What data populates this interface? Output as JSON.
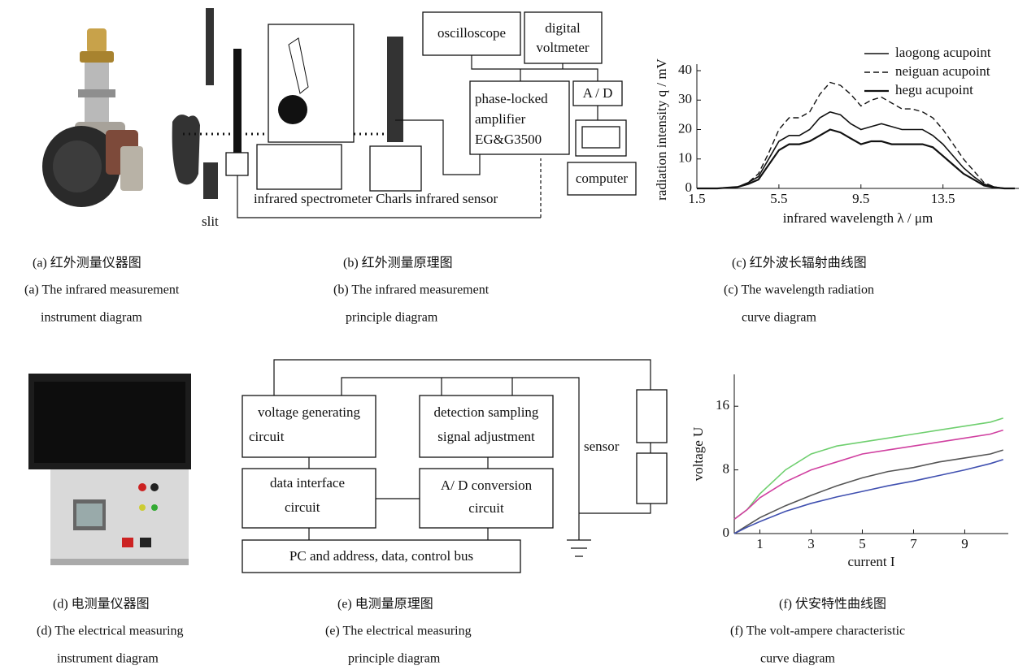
{
  "chart_data": [
    {
      "type": "line",
      "y_label": "radiation intensity q / mV",
      "x_label": "infrared wavelength λ / μm",
      "x": [
        1.5,
        2.5,
        3.5,
        4.0,
        4.5,
        5.0,
        5.5,
        6.0,
        6.5,
        7.0,
        7.5,
        8.0,
        8.5,
        9.0,
        9.5,
        10.0,
        10.5,
        11.0,
        11.5,
        12.0,
        12.5,
        13.0,
        13.5,
        14.0,
        14.5,
        15.0,
        15.5,
        16.0,
        16.5,
        17.0
      ],
      "series": [
        {
          "name": "laogong acupoint",
          "color": "#111111",
          "dash": false,
          "width": 1.6,
          "values": [
            0,
            0,
            0.5,
            2,
            4,
            10,
            16,
            18,
            18,
            20,
            24,
            26,
            25,
            22,
            20,
            21,
            22,
            21,
            20,
            20,
            20,
            18,
            15,
            11,
            7,
            4,
            1.5,
            0.5,
            0,
            0
          ]
        },
        {
          "name": "neiguan acupoint",
          "color": "#111111",
          "dash": true,
          "width": 1.4,
          "values": [
            0,
            0,
            0.5,
            2,
            5,
            12,
            20,
            24,
            24,
            26,
            32,
            36,
            35,
            32,
            28,
            30,
            31,
            29,
            27,
            27,
            26,
            24,
            20,
            15,
            10,
            6,
            2,
            0.5,
            0,
            0
          ]
        },
        {
          "name": "hegu acupoint",
          "color": "#111111",
          "dash": false,
          "width": 2.2,
          "values": [
            0,
            0,
            0.5,
            1.5,
            3,
            8,
            13,
            15,
            15,
            16,
            18,
            20,
            19,
            17,
            15,
            16,
            16,
            15,
            15,
            15,
            15,
            14,
            11,
            8,
            5,
            3,
            1,
            0.3,
            0,
            0
          ]
        }
      ],
      "xlim": [
        1.5,
        17.2
      ],
      "ylim": [
        0,
        40
      ],
      "xticks": [
        1.5,
        5.5,
        9.5,
        13.5
      ],
      "yticks": [
        0,
        10,
        20,
        30,
        40
      ],
      "legend": "upper right"
    },
    {
      "type": "line",
      "y_label": "voltage U",
      "x_label": "current I",
      "x": [
        0,
        0.5,
        1,
        2,
        3,
        4,
        5,
        6,
        7,
        8,
        9,
        10,
        10.5
      ],
      "series": [
        {
          "color": "#6fcf6f",
          "values": [
            1.8,
            3,
            5,
            8,
            10,
            11,
            11.5,
            12,
            12.5,
            13,
            13.5,
            14,
            14.5
          ]
        },
        {
          "color": "#d040a0",
          "values": [
            1.8,
            3,
            4.5,
            6.5,
            8,
            9,
            10,
            10.5,
            11,
            11.5,
            12,
            12.5,
            13
          ]
        },
        {
          "color": "#555555",
          "values": [
            0,
            1,
            2,
            3.5,
            4.8,
            6,
            7,
            7.8,
            8.3,
            9,
            9.5,
            10,
            10.5
          ]
        },
        {
          "color": "#4050b0",
          "values": [
            0,
            0.8,
            1.5,
            2.8,
            3.8,
            4.6,
            5.3,
            6,
            6.6,
            7.3,
            8,
            8.8,
            9.3
          ]
        }
      ],
      "xlim": [
        0,
        10.7
      ],
      "ylim": [
        0,
        20
      ],
      "xticks": [
        1,
        3,
        5,
        7,
        9
      ],
      "yticks": [
        0,
        8,
        16
      ]
    }
  ],
  "diagram_b": {
    "oscilloscope": "oscilloscope",
    "voltmeter": [
      "digital",
      "voltmeter"
    ],
    "amplifier": [
      "phase-locked",
      "amplifier",
      "EG&G3500"
    ],
    "ad": "A / D",
    "computer": "computer",
    "slit": "slit",
    "spectrometer": "infrared spectrometer Charls infrared sensor"
  },
  "diagram_e": {
    "voltage_circuit": [
      "voltage generating",
      "circuit"
    ],
    "detection": [
      "detection sampling",
      "signal adjustment"
    ],
    "data_interface": [
      "data interface",
      "circuit"
    ],
    "ad_conversion": [
      "A/ D conversion",
      "circuit"
    ],
    "bus": "PC and address, data, control bus",
    "sensor": "sensor"
  },
  "captions": [
    {
      "cn": "(a) 红外测量仪器图",
      "en": [
        "(a) The infrared measurement",
        "instrument diagram"
      ]
    },
    {
      "cn": "(b) 红外测量原理图",
      "en": [
        "(b) The infrared measurement",
        "principle diagram"
      ]
    },
    {
      "cn": "(c) 红外波长辐射曲线图",
      "en": [
        "(c) The wavelength radiation",
        "curve diagram"
      ]
    },
    {
      "cn": "(d) 电测量仪器图",
      "en": [
        "(d) The electrical measuring",
        "instrument diagram"
      ]
    },
    {
      "cn": "(e) 电测量原理图",
      "en": [
        "(e) The electrical measuring",
        "principle diagram"
      ]
    },
    {
      "cn": "(f) 伏安特性曲线图",
      "en": [
        "(f) The volt-ampere characteristic",
        "curve diagram"
      ]
    }
  ]
}
